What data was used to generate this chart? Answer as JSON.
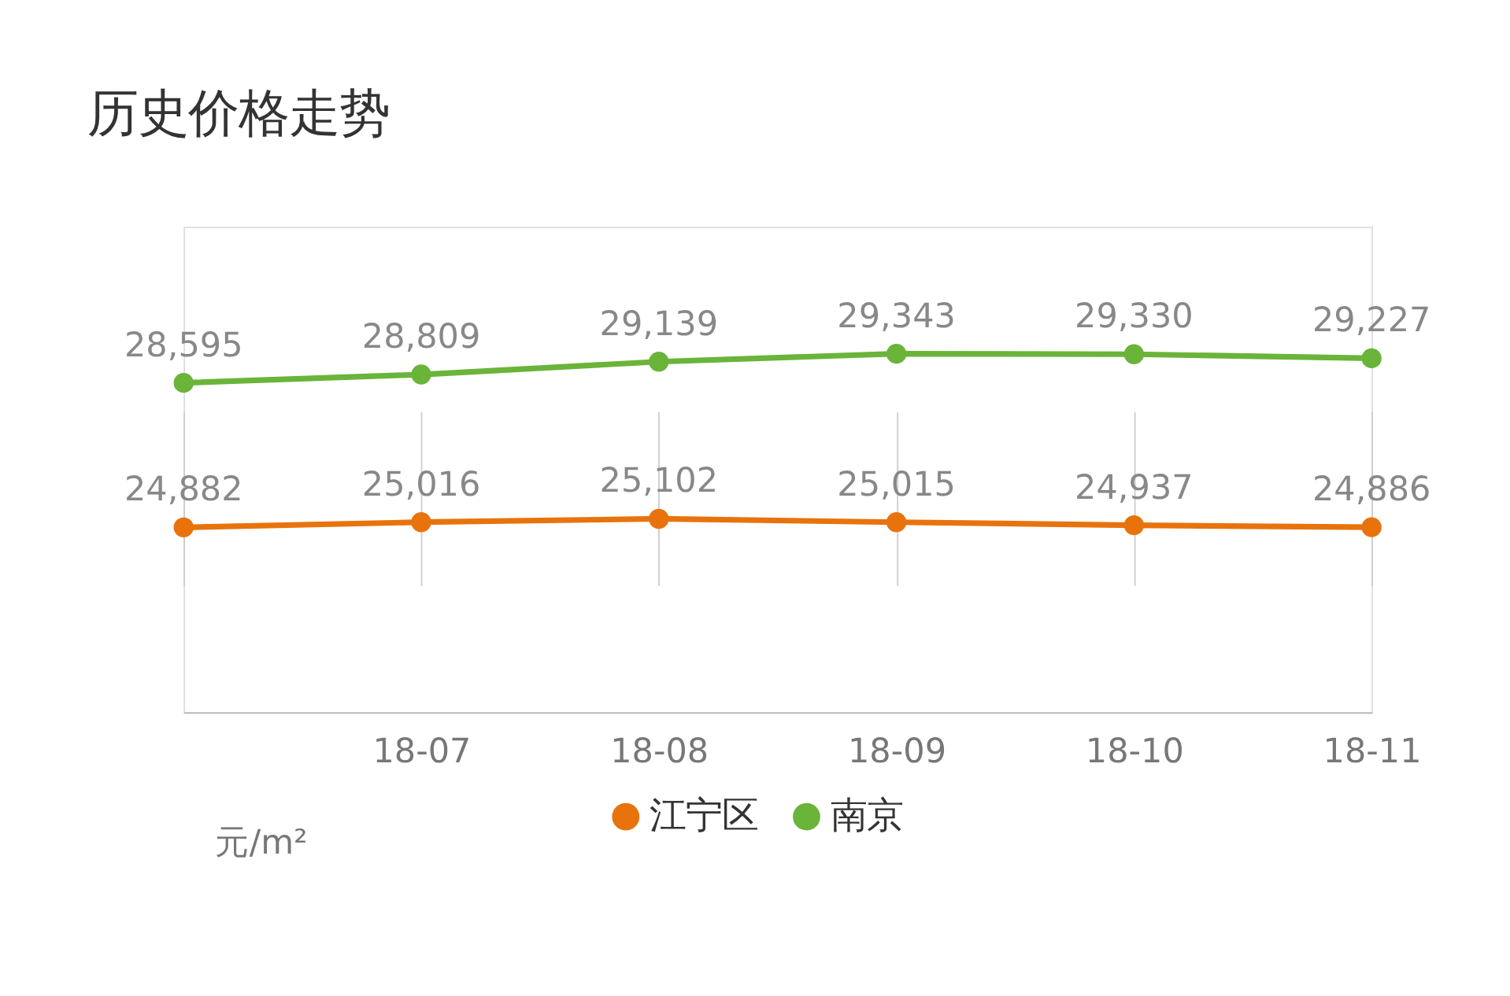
{
  "chart_data": {
    "type": "line",
    "title": "历史价格走势",
    "categories": [
      null,
      "18-07",
      "18-08",
      "18-09",
      "18-10",
      "18-11"
    ],
    "series": [
      {
        "name": "江宁区",
        "color": "#e8730c",
        "values": [
          24882,
          25016,
          25102,
          25015,
          24937,
          24886
        ],
        "value_labels": [
          "24,882",
          "25,016",
          "25,102",
          "25,015",
          "24,937",
          "24,886"
        ]
      },
      {
        "name": "南京",
        "color": "#6ab43a",
        "values": [
          28595,
          28809,
          29139,
          29343,
          29330,
          29227
        ],
        "value_labels": [
          "28,595",
          "28,809",
          "29,139",
          "29,343",
          "29,330",
          "29,227"
        ]
      }
    ],
    "grid": "x",
    "legend": "bottom",
    "marker": "circle",
    "line_style": "solid",
    "tick_labels": "x",
    "annotations": [
      "元/m²"
    ]
  }
}
